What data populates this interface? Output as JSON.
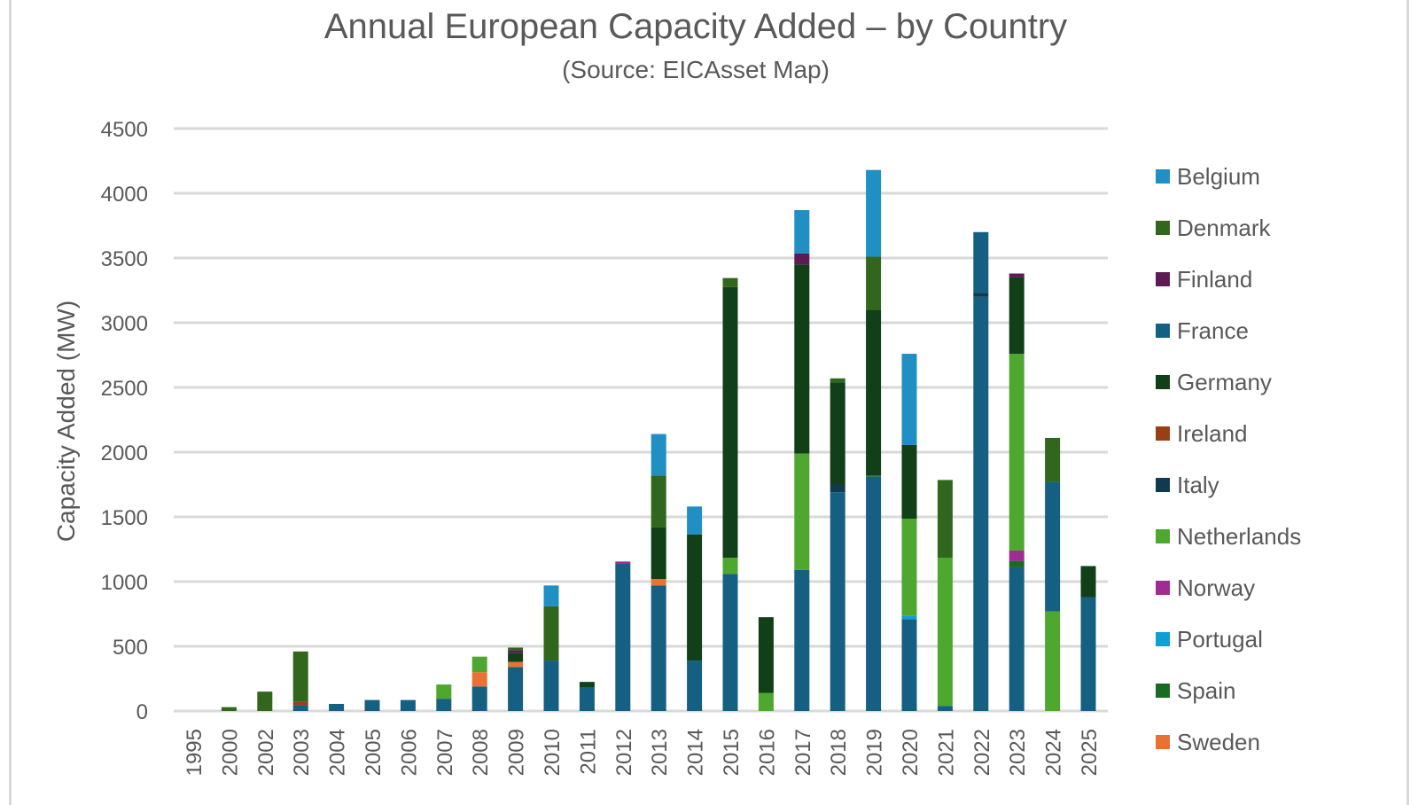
{
  "chart_data": {
    "type": "bar",
    "stacked": true,
    "title": "Annual European Capacity Added – by Country",
    "subtitle": "(Source: EICAsset Map)",
    "xlabel": "",
    "ylabel": "Capacity Added (MW)",
    "ylim": [
      0,
      4500
    ],
    "yticks": [
      "0",
      "500",
      "1000",
      "1500",
      "2000",
      "2500",
      "3000",
      "3500",
      "4000",
      "4500"
    ],
    "grid": true,
    "legend_position": "right",
    "categories": [
      "1995",
      "2000",
      "2002",
      "2003",
      "2004",
      "2005",
      "2006",
      "2007",
      "2008",
      "2009",
      "2010",
      "2011",
      "2012",
      "2013",
      "2014",
      "2015",
      "2016",
      "2017",
      "2018",
      "2019",
      "2020",
      "2021",
      "2022",
      "2023",
      "2024",
      "2025"
    ],
    "legend": [
      {
        "name": "Belgium",
        "color": "#1f8fc4"
      },
      {
        "name": "Denmark",
        "color": "#31661d"
      },
      {
        "name": "Finland",
        "color": "#5e1a55"
      },
      {
        "name": "France",
        "color": "#156082"
      },
      {
        "name": "Germany",
        "color": "#113f17"
      },
      {
        "name": "Ireland",
        "color": "#9a3f13"
      },
      {
        "name": "Italy",
        "color": "#0e3a52"
      },
      {
        "name": "Netherlands",
        "color": "#4ea72e"
      },
      {
        "name": "Norway",
        "color": "#a02b93"
      },
      {
        "name": "Portugal",
        "color": "#0f9ed5"
      },
      {
        "name": "Spain",
        "color": "#196b24"
      },
      {
        "name": "Sweden",
        "color": "#e97132"
      }
    ],
    "stacks": [
      [],
      [
        [
          "Denmark",
          30
        ]
      ],
      [
        [
          "Denmark",
          150
        ]
      ],
      [
        [
          "France",
          45
        ],
        [
          "Ireland",
          25
        ],
        [
          "Denmark",
          390
        ]
      ],
      [
        [
          "France",
          55
        ]
      ],
      [
        [
          "France",
          85
        ]
      ],
      [
        [
          "France",
          85
        ]
      ],
      [
        [
          "France",
          95
        ],
        [
          "Netherlands",
          110
        ]
      ],
      [
        [
          "France",
          190
        ],
        [
          "Sweden",
          110
        ],
        [
          "Netherlands",
          120
        ]
      ],
      [
        [
          "France",
          340
        ],
        [
          "Sweden",
          40
        ],
        [
          "Germany",
          70
        ],
        [
          "Finland",
          20
        ],
        [
          "Denmark",
          20
        ]
      ],
      [
        [
          "France",
          390
        ],
        [
          "Denmark",
          420
        ],
        [
          "Belgium",
          160
        ]
      ],
      [
        [
          "France",
          185
        ],
        [
          "Germany",
          40
        ]
      ],
      [
        [
          "France",
          1140
        ],
        [
          "Norway",
          15
        ]
      ],
      [
        [
          "France",
          970
        ],
        [
          "Sweden",
          50
        ],
        [
          "Germany",
          400
        ],
        [
          "Denmark",
          400
        ],
        [
          "Belgium",
          320
        ]
      ],
      [
        [
          "France",
          390
        ],
        [
          "Germany",
          975
        ],
        [
          "Belgium",
          215
        ]
      ],
      [
        [
          "France",
          1060
        ],
        [
          "Netherlands",
          125
        ],
        [
          "Germany",
          2090
        ],
        [
          "Denmark",
          70
        ]
      ],
      [
        [
          "Netherlands",
          140
        ],
        [
          "Germany",
          585
        ]
      ],
      [
        [
          "France",
          1090
        ],
        [
          "Netherlands",
          900
        ],
        [
          "Germany",
          1460
        ],
        [
          "Finland",
          85
        ],
        [
          "Belgium",
          335
        ]
      ],
      [
        [
          "France",
          1690
        ],
        [
          "Italy",
          60
        ],
        [
          "Germany",
          790
        ],
        [
          "Denmark",
          30
        ]
      ],
      [
        [
          "France",
          1810
        ],
        [
          "Spain",
          10
        ],
        [
          "Germany",
          1280
        ],
        [
          "Denmark",
          410
        ],
        [
          "Belgium",
          670
        ]
      ],
      [
        [
          "France",
          710
        ],
        [
          "Portugal",
          25
        ],
        [
          "Netherlands",
          750
        ],
        [
          "Germany",
          570
        ],
        [
          "Belgium",
          705
        ]
      ],
      [
        [
          "France",
          40
        ],
        [
          "Netherlands",
          1145
        ],
        [
          "Denmark",
          600
        ]
      ],
      [
        [
          "France",
          3200
        ],
        [
          "Italy",
          30
        ],
        [
          "France",
          470
        ]
      ],
      [
        [
          "France",
          1110
        ],
        [
          "Spain",
          50
        ],
        [
          "Norway",
          80
        ],
        [
          "Netherlands",
          1520
        ],
        [
          "Germany",
          590
        ],
        [
          "Finland",
          30
        ]
      ],
      [
        [
          "Netherlands",
          770
        ],
        [
          "France",
          1000
        ],
        [
          "Denmark",
          340
        ]
      ],
      [
        [
          "France",
          880
        ],
        [
          "Germany",
          240
        ]
      ]
    ]
  }
}
